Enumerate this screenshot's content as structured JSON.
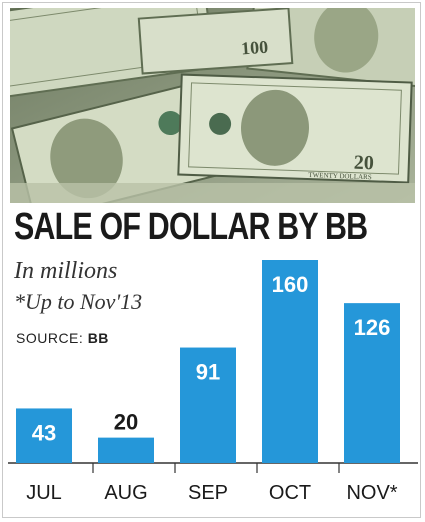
{
  "header": {
    "title": "SALE OF DOLLAR BY BB",
    "subtitle": "In millions",
    "note": "*Up to Nov'13",
    "source_label": "SOURCE:",
    "source_value": "BB"
  },
  "photo": {
    "icon": "dollar-bills-photo",
    "banknote_texts": [
      "100",
      "100",
      "20",
      "TWENTY DOLLARS"
    ]
  },
  "colors": {
    "bar": "#2597d9",
    "bar_label": "#ffffff",
    "axis": "#333333",
    "photo_bg": "#8e9a7e",
    "note": "#cfd8c0"
  },
  "chart_data": {
    "type": "bar",
    "categories": [
      "JUL",
      "AUG",
      "SEP",
      "OCT",
      "NOV*"
    ],
    "values": [
      43,
      20,
      91,
      160,
      126
    ],
    "value_labels": [
      "43",
      "20",
      "91",
      "160",
      "126"
    ],
    "title": "SALE OF DOLLAR BY BB",
    "xlabel": "",
    "ylabel": "",
    "ylim": [
      0,
      160
    ],
    "grid": false,
    "legend": "none"
  }
}
